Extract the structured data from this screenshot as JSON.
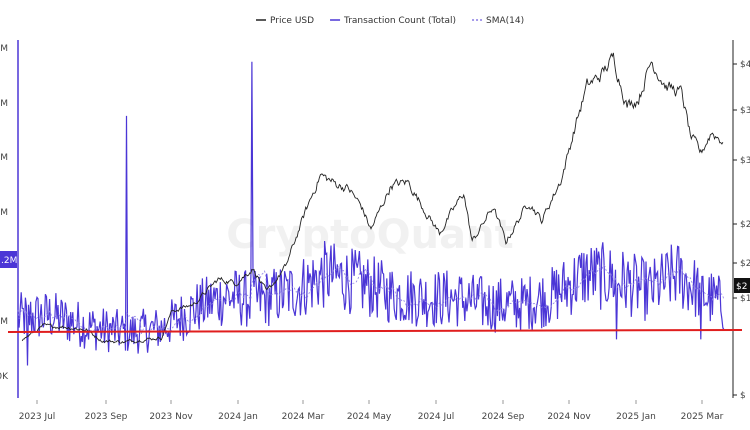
{
  "chart_data": {
    "type": "line",
    "watermark": "CryptoQuant",
    "legend": [
      {
        "name": "Price USD",
        "color": "#222222",
        "style": "solid"
      },
      {
        "name": "Transaction Count (Total)",
        "color": "#4b36d6",
        "style": "solid"
      },
      {
        "name": "SMA(14)",
        "color": "#4b36d6",
        "style": "dashed"
      }
    ],
    "x_ticks": [
      "2023 Jul",
      "2023 Sep",
      "2023 Nov",
      "2024 Jan",
      "2024 Mar",
      "2024 May",
      "2024 Jul",
      "2024 Sep",
      "2024 Nov",
      "2025 Jan",
      "2025 Mar"
    ],
    "x_range": [
      "2023-06-01",
      "2025-04-01"
    ],
    "left_axis_ticks": [
      "M",
      "M",
      "M",
      "M",
      "M",
      "0K"
    ],
    "left_axis_badge": ".2M",
    "right_axis_ticks": [
      "$4",
      "$3",
      "$3",
      "$2",
      "$2",
      "$1",
      "$"
    ],
    "right_axis_badge": "$2",
    "reference_line": {
      "color": "#e01e1e"
    },
    "series": [
      {
        "name": "Price USD",
        "keypoints": [
          [
            "2023-06-05",
            26400
          ],
          [
            "2023-06-25",
            30300
          ],
          [
            "2023-07-15",
            30100
          ],
          [
            "2023-08-05",
            29200
          ],
          [
            "2023-08-20",
            26100
          ],
          [
            "2023-09-10",
            25800
          ],
          [
            "2023-09-28",
            26500
          ],
          [
            "2023-10-15",
            27000
          ],
          [
            "2023-10-25",
            34500
          ],
          [
            "2023-11-15",
            36500
          ],
          [
            "2023-12-08",
            43500
          ],
          [
            "2023-12-25",
            42500
          ],
          [
            "2024-01-10",
            46500
          ],
          [
            "2024-01-23",
            39700
          ],
          [
            "2024-02-10",
            47000
          ],
          [
            "2024-02-28",
            62000
          ],
          [
            "2024-03-14",
            73000
          ],
          [
            "2024-03-28",
            70500
          ],
          [
            "2024-04-10",
            69000
          ],
          [
            "2024-04-22",
            64000
          ],
          [
            "2024-05-01",
            57500
          ],
          [
            "2024-05-20",
            70000
          ],
          [
            "2024-06-05",
            71000
          ],
          [
            "2024-06-25",
            61000
          ],
          [
            "2024-07-05",
            56500
          ],
          [
            "2024-07-28",
            68000
          ],
          [
            "2024-08-05",
            54000
          ],
          [
            "2024-08-25",
            64000
          ],
          [
            "2024-09-06",
            54000
          ],
          [
            "2024-09-28",
            65500
          ],
          [
            "2024-10-10",
            60000
          ],
          [
            "2024-10-29",
            72000
          ],
          [
            "2024-11-12",
            88000
          ],
          [
            "2024-11-22",
            98000
          ],
          [
            "2024-12-05",
            101000
          ],
          [
            "2024-12-17",
            106000
          ],
          [
            "2024-12-30",
            92500
          ],
          [
            "2025-01-10",
            94500
          ],
          [
            "2025-01-22",
            105000
          ],
          [
            "2025-02-05",
            98000
          ],
          [
            "2025-02-20",
            96000
          ],
          [
            "2025-02-28",
            84000
          ],
          [
            "2025-03-10",
            79000
          ],
          [
            "2025-03-20",
            85000
          ],
          [
            "2025-03-31",
            82500
          ]
        ]
      },
      {
        "name": "Transaction Count (Total)",
        "keypoints": [
          [
            "2023-06-01",
            520000
          ],
          [
            "2023-07-01",
            530000
          ],
          [
            "2023-08-15",
            470000
          ],
          [
            "2023-09-15",
            450000
          ],
          [
            "2023-10-15",
            470000
          ],
          [
            "2023-11-15",
            560000
          ],
          [
            "2023-12-15",
            620000
          ],
          [
            "2024-01-15",
            600000
          ],
          [
            "2024-02-15",
            640000
          ],
          [
            "2024-03-20",
            720000
          ],
          [
            "2024-04-20",
            680000
          ],
          [
            "2024-05-20",
            630000
          ],
          [
            "2024-06-20",
            610000
          ],
          [
            "2024-07-20",
            610000
          ],
          [
            "2024-08-20",
            580000
          ],
          [
            "2024-09-20",
            580000
          ],
          [
            "2024-10-20",
            620000
          ],
          [
            "2024-11-20",
            720000
          ],
          [
            "2024-12-20",
            700000
          ],
          [
            "2025-01-20",
            640000
          ],
          [
            "2025-02-15",
            720000
          ],
          [
            "2025-03-15",
            620000
          ],
          [
            "2025-03-31",
            580000
          ]
        ],
        "spikes": [
          [
            "2023-09-12",
            1450000
          ],
          [
            "2024-01-09",
            1700000
          ],
          [
            "2023-06-10",
            300000
          ],
          [
            "2024-12-20",
            420000
          ],
          [
            "2025-03-10",
            420000
          ]
        ]
      },
      {
        "name": "SMA(14)",
        "derived_from": "Transaction Count (Total)",
        "window": 14
      }
    ]
  }
}
